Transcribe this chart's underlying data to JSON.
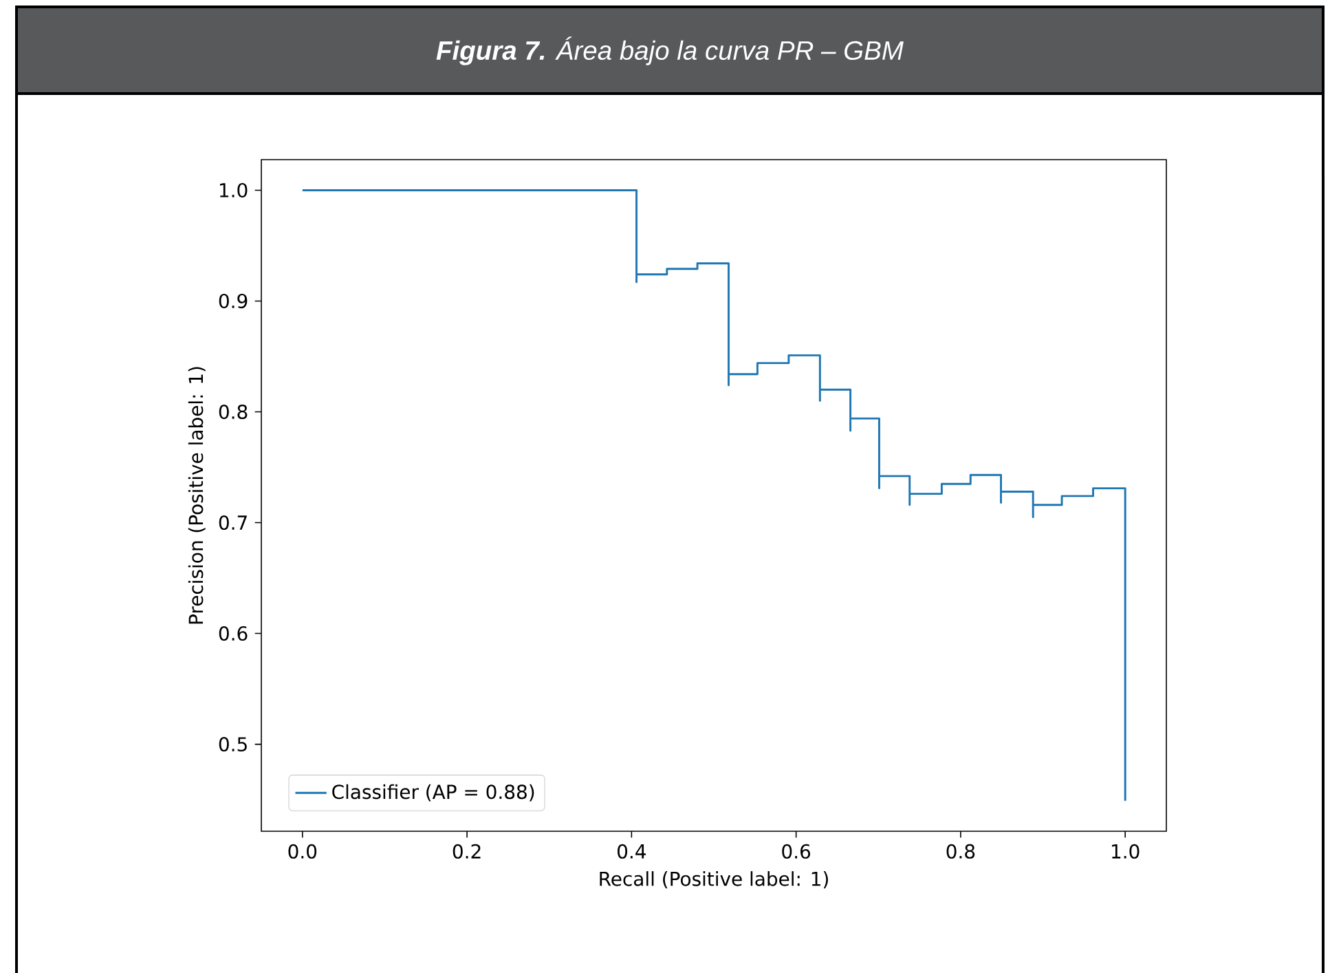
{
  "chart_data": {
    "type": "step",
    "title": "**Figura 7.** Área bajo la curva PR – GBM",
    "xlabel": "Recall (Positive label: 1)",
    "ylabel": "Precision (Positive label: 1)",
    "x": [
      0,
      0.406,
      0.406,
      0.443,
      0.48,
      0.518,
      0.518,
      0.553,
      0.591,
      0.629,
      0.629,
      0.666,
      0.666,
      0.701,
      0.701,
      0.738,
      0.738,
      0.777,
      0.812,
      0.849,
      0.849,
      0.888,
      0.888,
      0.923,
      0.961,
      1.0,
      1.0
    ],
    "series": [
      {
        "name": "Classifier (AP = 0.88)",
        "color": "#1f77b4",
        "values": [
          1.0,
          1.0,
          0.917,
          0.924,
          0.929,
          0.934,
          0.824,
          0.834,
          0.844,
          0.851,
          0.81,
          0.82,
          0.783,
          0.794,
          0.731,
          0.742,
          0.716,
          0.726,
          0.735,
          0.743,
          0.718,
          0.728,
          0.705,
          0.716,
          0.724,
          0.731,
          0.449
        ]
      }
    ],
    "xlim": [
      -0.05,
      1.05
    ],
    "ylim": [
      0.4215,
      1.0276
    ],
    "xticks": [
      {
        "value": 0,
        "label": "0.0"
      },
      0.2,
      0.4,
      0.6,
      0.8,
      {
        "value": 1,
        "label": "1.0"
      }
    ],
    "yticks": [
      0.5,
      0.6,
      0.7,
      0.8,
      0.9,
      {
        "value": 1,
        "label": "1.0"
      }
    ],
    "legend": "bottom left"
  }
}
